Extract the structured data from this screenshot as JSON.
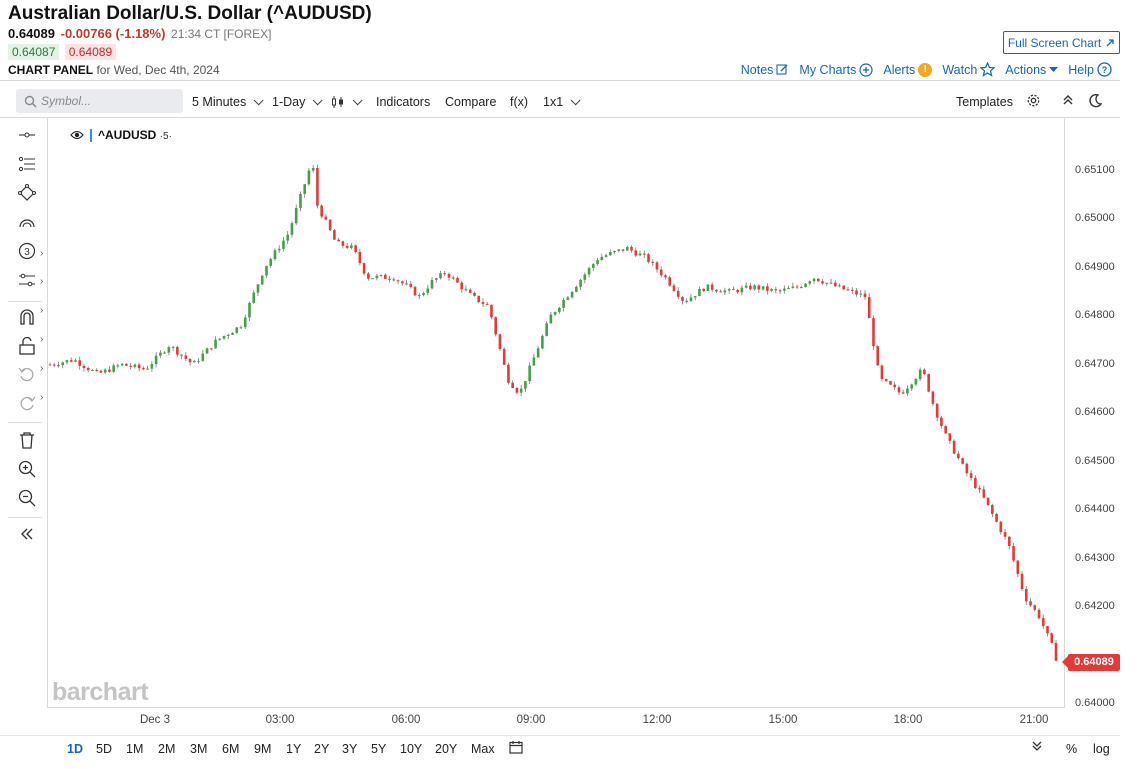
{
  "header": {
    "title": "Australian Dollar/U.S. Dollar (^AUDUSD)",
    "last": "0.64089",
    "change": "-0.00766 (-1.18%)",
    "time": "21:34 CT [FOREX]",
    "bid": "0.64087",
    "ask": "0.64089",
    "panel_label": "CHART PANEL",
    "panel_date": "for Wed, Dec 4th, 2024",
    "fullscreen_label": "Full Screen Chart"
  },
  "toplinks": {
    "notes": "Notes",
    "mycharts": "My Charts",
    "alerts": "Alerts",
    "alerts_badge": "!",
    "watch": "Watch",
    "actions": "Actions",
    "help": "Help"
  },
  "toolbar": {
    "search_placeholder": "Symbol...",
    "interval": "5 Minutes",
    "period": "1-Day",
    "indicators": "Indicators",
    "compare": "Compare",
    "fx": "f(x)",
    "layout": "1x1",
    "templates": "Templates"
  },
  "legend": {
    "symbol": "^AUDUSD",
    "interval": "·5·"
  },
  "price_tag": "0.64089",
  "watermark": "barchart",
  "bottom": {
    "ranges": [
      "1D",
      "5D",
      "1M",
      "2M",
      "3M",
      "6M",
      "9M",
      "1Y",
      "2Y",
      "3Y",
      "5Y",
      "10Y",
      "20Y",
      "Max"
    ],
    "active": "1D",
    "pct": "%",
    "log": "log"
  },
  "colors": {
    "up": "#43a047",
    "down": "#e53935",
    "accent": "#1565c0"
  },
  "chart_data": {
    "type": "candlestick",
    "symbol": "^AUDUSD",
    "interval": "5 Minutes",
    "y_ticks": [
      "0.65100",
      "0.65000",
      "0.64900",
      "0.64800",
      "0.64700",
      "0.64600",
      "0.64500",
      "0.64400",
      "0.64300",
      "0.64200",
      "0.64000"
    ],
    "x_ticks": [
      "Dec 3",
      "03:00",
      "06:00",
      "09:00",
      "12:00",
      "15:00",
      "18:00",
      "21:00"
    ],
    "ylim": [
      0.64,
      0.652
    ],
    "path": [
      [
        0,
        0.647
      ],
      [
        1,
        0.6471
      ],
      [
        2,
        0.6468
      ],
      [
        3,
        0.647
      ],
      [
        4,
        0.6469
      ],
      [
        5,
        0.6474
      ],
      [
        6,
        0.647
      ],
      [
        7,
        0.6475
      ],
      [
        8,
        0.6478
      ],
      [
        9,
        0.649
      ],
      [
        10,
        0.6497
      ],
      [
        11,
        0.6512
      ],
      [
        11.2,
        0.6503
      ],
      [
        12,
        0.6495
      ],
      [
        12.7,
        0.6494
      ],
      [
        13.3,
        0.6488
      ],
      [
        14.4,
        0.6488
      ],
      [
        15,
        0.6486
      ],
      [
        15.5,
        0.6484
      ],
      [
        16,
        0.6487
      ],
      [
        16.6,
        0.6489
      ],
      [
        17.7,
        0.6484
      ],
      [
        18.4,
        0.6482
      ],
      [
        19.2,
        0.6467
      ],
      [
        19.7,
        0.6464
      ],
      [
        21,
        0.648
      ],
      [
        22,
        0.6486
      ],
      [
        23,
        0.6492
      ],
      [
        24.2,
        0.6494
      ],
      [
        25,
        0.6492
      ],
      [
        25.8,
        0.6488
      ],
      [
        26.6,
        0.6483
      ],
      [
        27.5,
        0.6486
      ],
      [
        28.5,
        0.6485
      ],
      [
        29.5,
        0.6486
      ],
      [
        30.5,
        0.6485
      ],
      [
        31.4,
        0.6486
      ],
      [
        32,
        0.6488
      ],
      [
        33,
        0.6486
      ],
      [
        34.2,
        0.6484
      ],
      [
        34.8,
        0.6467
      ],
      [
        35.7,
        0.6464
      ],
      [
        36.6,
        0.6469
      ],
      [
        37.1,
        0.6461
      ],
      [
        37.6,
        0.6455
      ],
      [
        38.4,
        0.6448
      ],
      [
        39.1,
        0.6443
      ],
      [
        40.2,
        0.6433
      ],
      [
        40.9,
        0.6422
      ],
      [
        41.5,
        0.6418
      ],
      [
        42.2,
        0.641
      ]
    ]
  }
}
